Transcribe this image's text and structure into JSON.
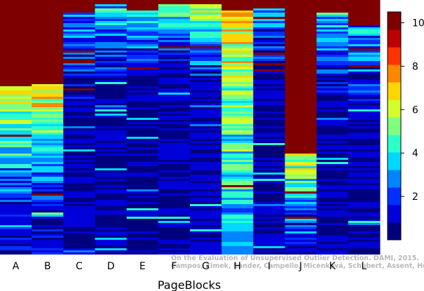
{
  "chart_data": {
    "type": "heatmap",
    "title": "",
    "xlabel": "PageBlocks",
    "ylabel": "",
    "categories": [
      "A",
      "B",
      "C",
      "D",
      "E",
      "F",
      "G",
      "H",
      "I",
      "J",
      "K",
      "L"
    ],
    "colorbar": {
      "min": 0,
      "max": 10.5,
      "ticks": [
        2,
        4,
        6,
        8,
        10
      ]
    },
    "palette": [
      "#00007f",
      "#0000d8",
      "#0030ff",
      "#0084ff",
      "#00d8ff",
      "#2cffca",
      "#7fff7f",
      "#d2ff2c",
      "#ffd700",
      "#ff8700",
      "#ff3300",
      "#bb0000",
      "#7f0000"
    ],
    "column_top_value": 10.5,
    "column_profiles": [
      {
        "name": "A",
        "red_fraction": 0.34,
        "mid_value": 6.5,
        "mid_fraction": 0.48,
        "low_value": 1.2
      },
      {
        "name": "B",
        "red_fraction": 0.33,
        "mid_value": 6.8,
        "mid_fraction": 0.46,
        "low_value": 1.2
      },
      {
        "name": "C",
        "red_fraction": 0.05,
        "mid_value": 2.4,
        "mid_fraction": 0.35,
        "low_value": 0.8
      },
      {
        "name": "D",
        "red_fraction": 0.02,
        "mid_value": 3.6,
        "mid_fraction": 0.28,
        "low_value": 0.7
      },
      {
        "name": "E",
        "red_fraction": 0.04,
        "mid_value": 4.2,
        "mid_fraction": 0.26,
        "low_value": 0.7
      },
      {
        "name": "F",
        "red_fraction": 0.02,
        "mid_value": 4.8,
        "mid_fraction": 0.22,
        "low_value": 0.8
      },
      {
        "name": "G",
        "red_fraction": 0.02,
        "mid_value": 5.8,
        "mid_fraction": 0.3,
        "low_value": 1.0
      },
      {
        "name": "H",
        "red_fraction": 0.04,
        "mid_value": 6.5,
        "mid_fraction": 0.85,
        "low_value": 3.0
      },
      {
        "name": "I",
        "red_fraction": 0.03,
        "mid_value": 3.0,
        "mid_fraction": 0.25,
        "low_value": 0.8
      },
      {
        "name": "J",
        "red_fraction": 0.6,
        "mid_value": 6.0,
        "mid_fraction": 0.3,
        "low_value": 1.2
      },
      {
        "name": "K",
        "red_fraction": 0.05,
        "mid_value": 3.5,
        "mid_fraction": 0.35,
        "low_value": 0.8
      },
      {
        "name": "L",
        "red_fraction": 0.1,
        "mid_value": 3.2,
        "mid_fraction": 0.3,
        "low_value": 0.8
      }
    ]
  },
  "watermark": {
    "line1": "On the Evaluation of Unsupervised Outlier Detection. DAMI, 2015.",
    "line2": "Campos, Zimek, Sander, Campello, Micenková, Schubert, Assent, Houle"
  }
}
